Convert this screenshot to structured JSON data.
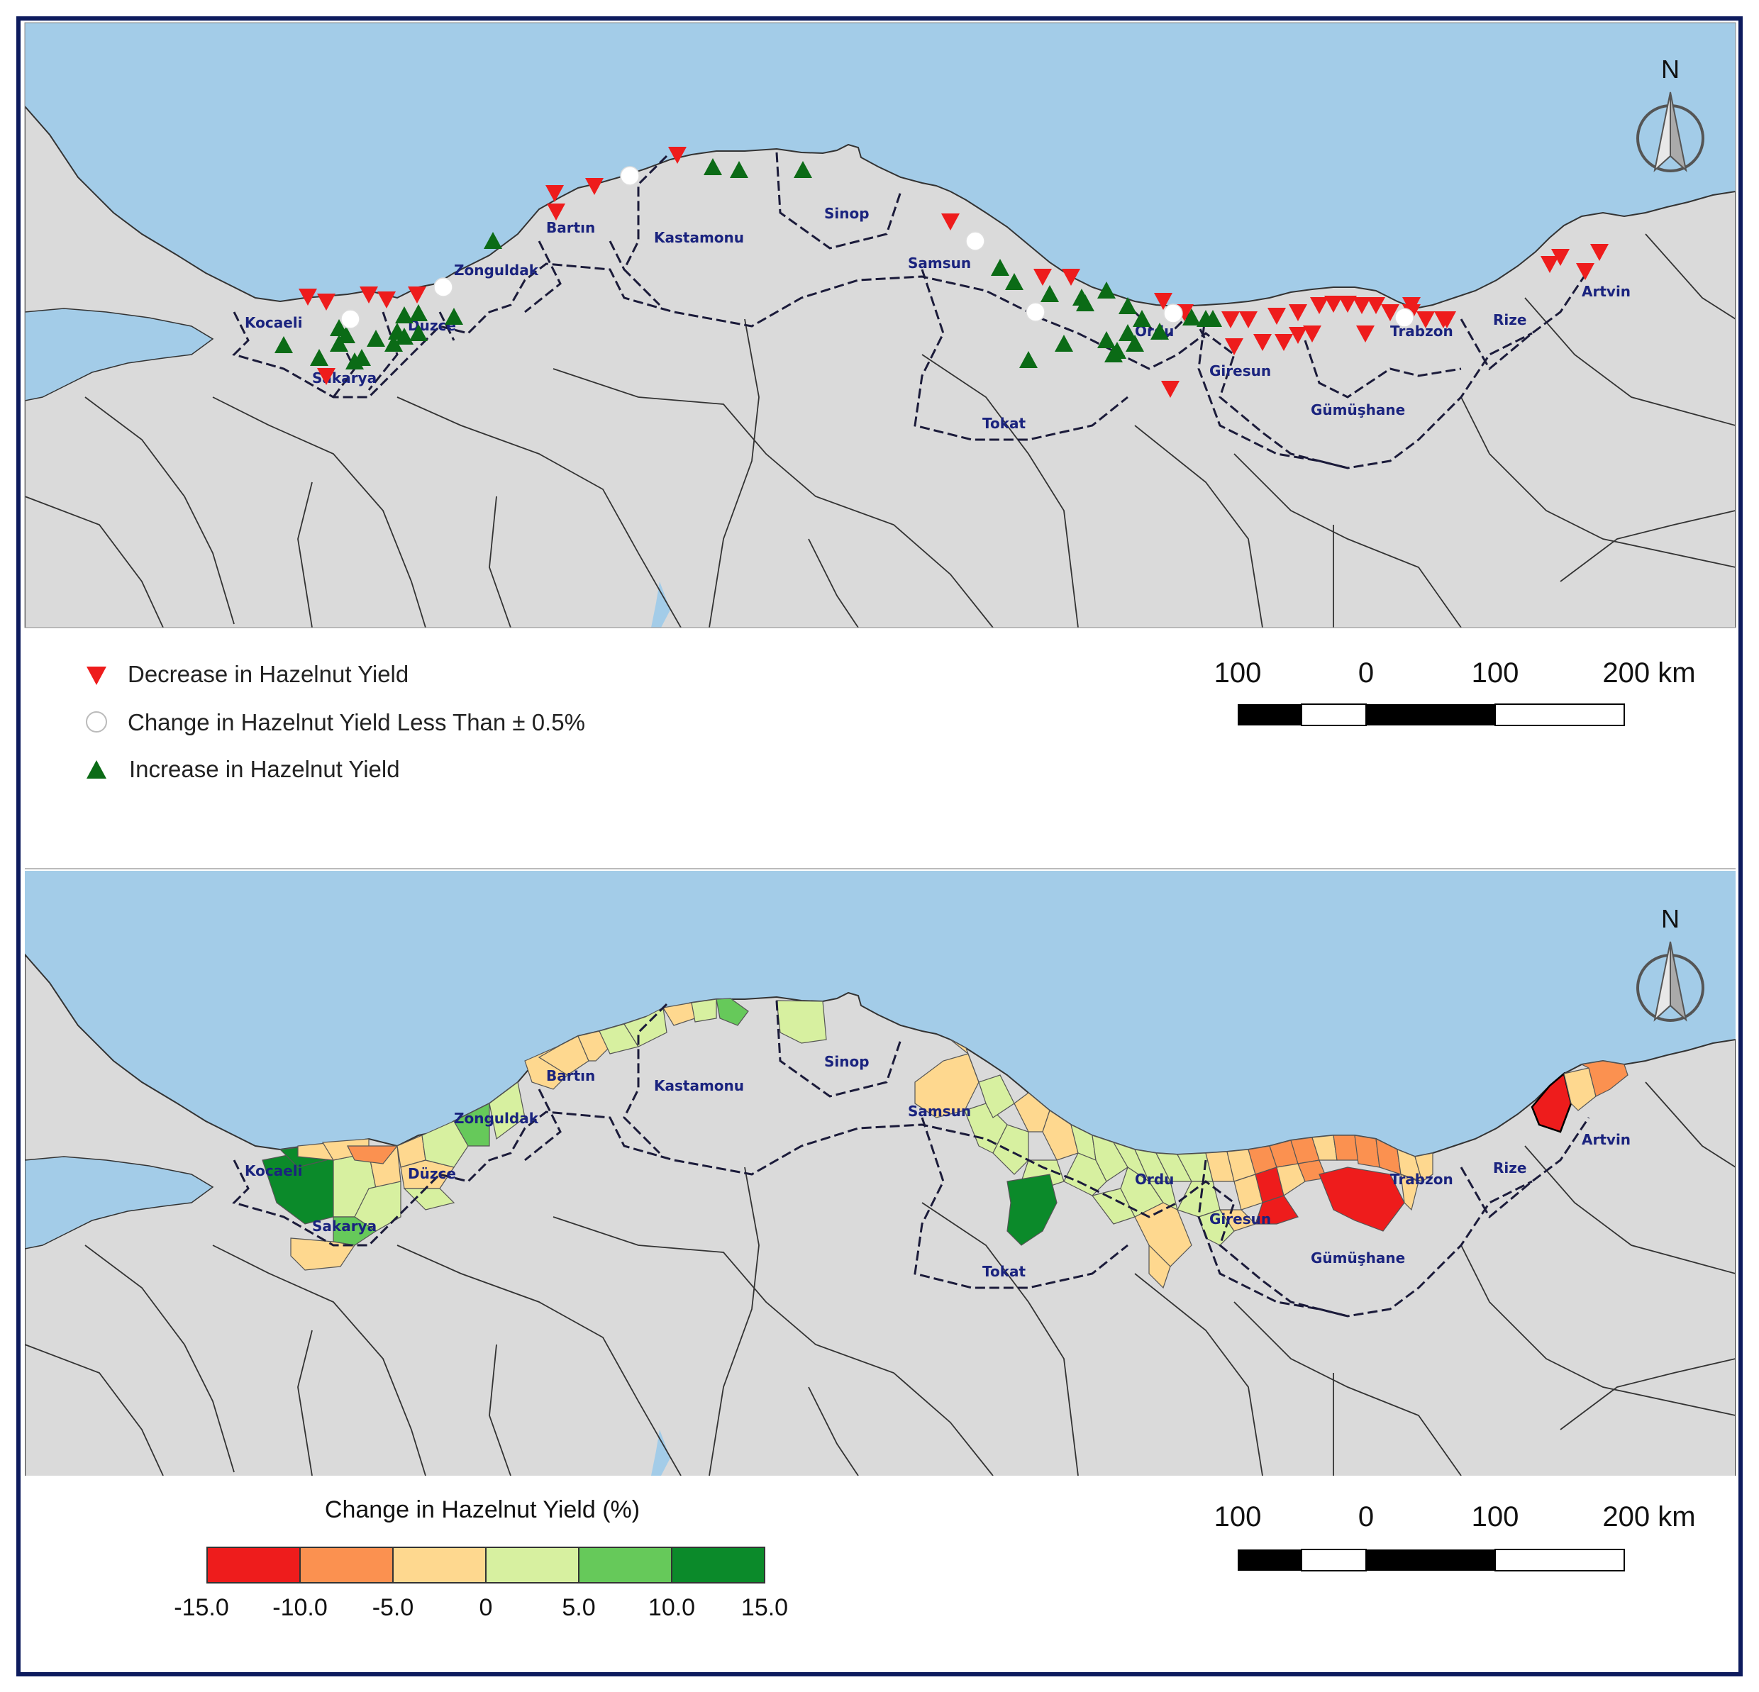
{
  "north_label": "N",
  "provinces": [
    "Kocaeli",
    "Sakarya",
    "Düzce",
    "Zonguldak",
    "Bartın",
    "Kastamonu",
    "Sinop",
    "Samsun",
    "Tokat",
    "Ordu",
    "Giresun",
    "Gümüşhane",
    "Trabzon",
    "Rize",
    "Artvin"
  ],
  "top_map": {
    "legend": {
      "decrease": "Decrease in Hazelnut Yield",
      "stable": "Change in Hazelnut Yield Less Than ± 0.5%",
      "increase": "Increase in Hazelnut Yield"
    },
    "marker_colors": {
      "decrease": "#ee1c1c",
      "stable": "#ffffff",
      "increase": "#0b6b16"
    }
  },
  "bottom_map": {
    "colorbar": {
      "title": "Change in Hazelnut Yield (%)",
      "ticks": [
        "-15.0",
        "-10.0",
        "-5.0",
        "0",
        "5.0",
        "10.0",
        "15.0"
      ],
      "colors": [
        "#ee1c1c",
        "#fb9150",
        "#fed88f",
        "#d7f0a0",
        "#66c95a",
        "#0b8a2a"
      ]
    }
  },
  "scalebar": {
    "labels": [
      "100",
      "0",
      "100",
      "200 km"
    ]
  },
  "colors": {
    "sea": "#a3cce8",
    "land": "#dadada",
    "border": "#333333",
    "frame": "#0d1b5e"
  }
}
